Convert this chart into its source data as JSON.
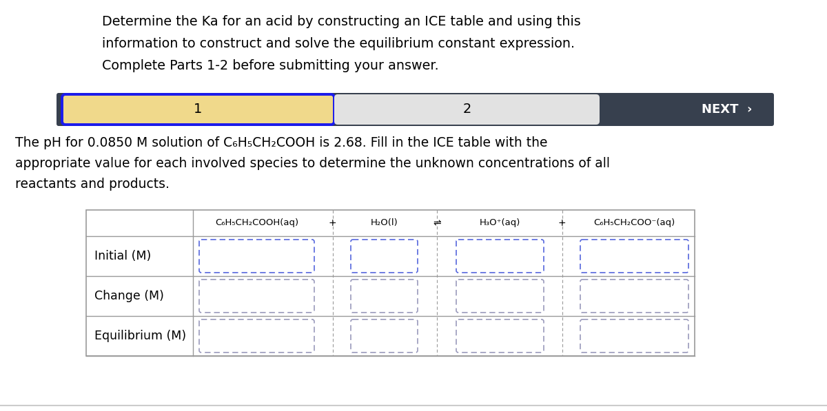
{
  "title_lines": [
    "Determine the Ka for an acid by constructing an ICE table and using this",
    "information to construct and solve the equilibrium constant expression.",
    "Complete Parts 1-2 before submitting your answer."
  ],
  "nav_bar": {
    "bg_color": "#37404e",
    "tab1_label": "1",
    "tab1_bg": "#f0d98b",
    "tab1_border": "#1a1aee",
    "tab2_label": "2",
    "tab2_bg": "#e2e2e2",
    "next_label": "NEXT  ›",
    "next_color": "#ffffff"
  },
  "description_lines": [
    "The pH for 0.0850 M solution of C₆H₅CH₂COOH is 2.68. Fill in the ICE table with the",
    "appropriate value for each involved species to determine the unknown concentrations of all",
    "reactants and products."
  ],
  "header_col_labels": [
    "C₆H₅CH₂COOH(aq)",
    "H₂O(l)",
    "H₃O⁺(aq)",
    "C₆H₅CH₂COO⁻(aq)"
  ],
  "header_sep_labels": [
    "+",
    "⇌",
    "+"
  ],
  "row_labels": [
    "Initial (M)",
    "Change (M)",
    "Equilibrium (M)"
  ],
  "bg_color": "#ffffff",
  "text_color": "#000000",
  "table_border_color": "#aaaaaa"
}
